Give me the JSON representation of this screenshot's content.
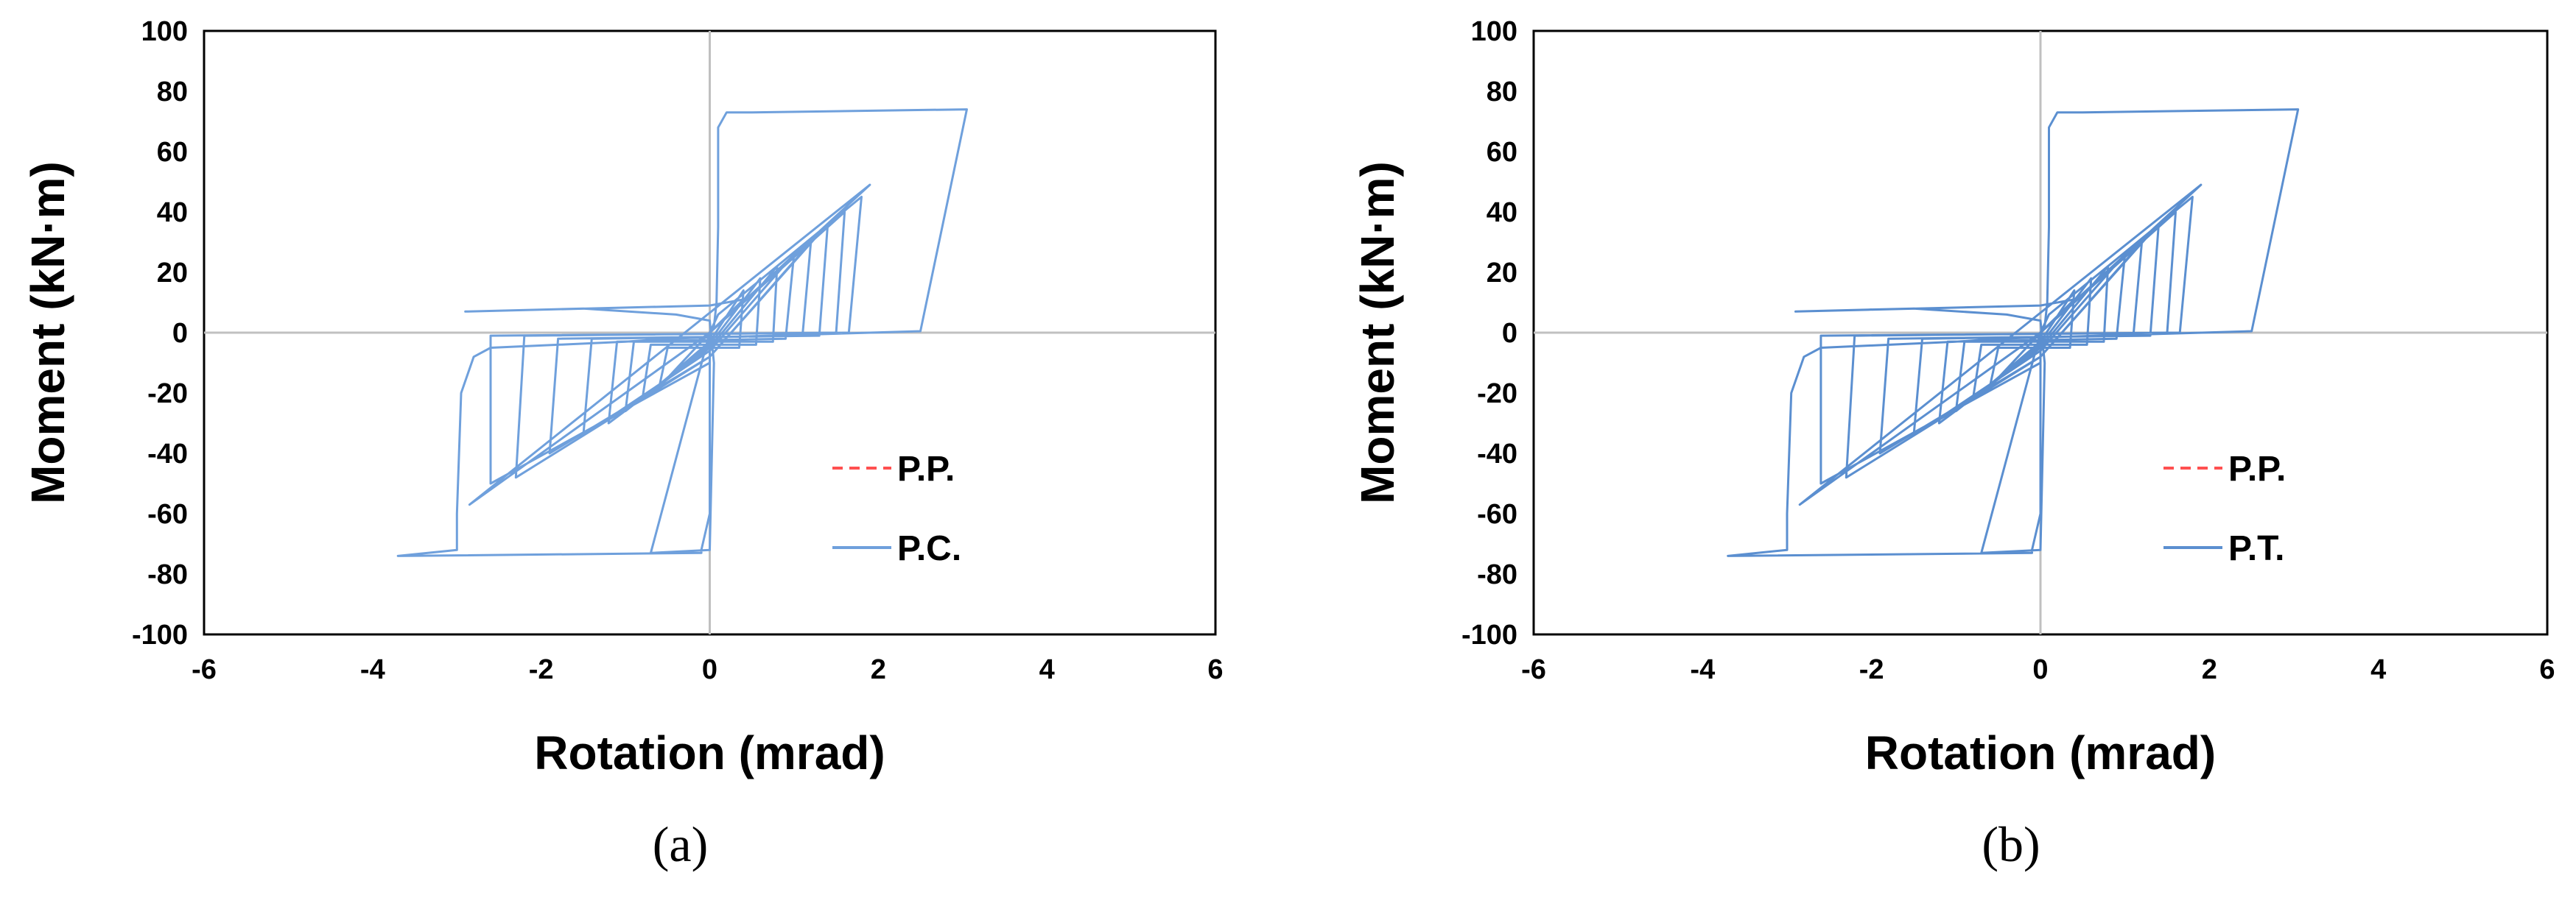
{
  "chart_data": [
    {
      "type": "line",
      "panel_label": "(a)",
      "xlabel": "Rotation (mrad)",
      "ylabel": "Moment (kN·m)",
      "xlim": [
        -6,
        6
      ],
      "ylim": [
        -100,
        100
      ],
      "xticks": [
        "-6",
        "-4",
        "-2",
        "0",
        "2",
        "4",
        "6"
      ],
      "yticks": [
        "100",
        "80",
        "60",
        "40",
        "20",
        "0",
        "-20",
        "-40",
        "-60",
        "-80",
        "-100"
      ],
      "grid": false,
      "legend_position": "bottom-right",
      "series": [
        {
          "name": "P.P.",
          "color": "#ff5050",
          "dash": "dashed",
          "points": []
        },
        {
          "name": "P.C.",
          "color": "#6fa0dc",
          "dash": "solid",
          "points": [
            [
              0,
              0
            ],
            [
              0.05,
              2
            ],
            [
              0.08,
              10
            ],
            [
              0.1,
              35
            ],
            [
              0.1,
              68
            ],
            [
              0.2,
              73
            ],
            [
              0.5,
              73
            ],
            [
              3.05,
              74
            ],
            [
              2.5,
              0.5
            ],
            [
              -0.5,
              -2
            ],
            [
              -1,
              -3
            ],
            [
              -2.6,
              -5
            ],
            [
              -2.8,
              -8
            ],
            [
              -2.95,
              -20
            ],
            [
              -3.0,
              -60
            ],
            [
              -3.0,
              -72
            ],
            [
              -3.7,
              -74
            ],
            [
              -0.1,
              -73
            ],
            [
              -0.1,
              -72
            ],
            [
              0,
              -60
            ],
            [
              0,
              0
            ],
            [
              0,
              0
            ],
            [
              1.9,
              49
            ],
            [
              -2.85,
              -57
            ],
            [
              0,
              0
            ],
            [
              0.1,
              6
            ],
            [
              1.8,
              45
            ],
            [
              1.65,
              0
            ],
            [
              -2.6,
              -1
            ],
            [
              -2.6,
              -50
            ],
            [
              0,
              -10
            ],
            [
              0,
              0
            ],
            [
              1.6,
              40
            ],
            [
              1.5,
              0
            ],
            [
              -2.2,
              -1
            ],
            [
              -2.3,
              -48
            ],
            [
              0,
              -8
            ],
            [
              1.4,
              36
            ],
            [
              1.3,
              -1
            ],
            [
              -1.8,
              -2
            ],
            [
              -1.9,
              -40
            ],
            [
              0,
              -8
            ],
            [
              1.2,
              30
            ],
            [
              1.1,
              -1
            ],
            [
              -1.4,
              -2
            ],
            [
              -1.5,
              -34
            ],
            [
              0,
              -6
            ],
            [
              1.0,
              26
            ],
            [
              0.9,
              -2
            ],
            [
              -1.1,
              -3
            ],
            [
              -1.2,
              -30
            ],
            [
              0,
              -5
            ],
            [
              0.8,
              22
            ],
            [
              0.75,
              -3
            ],
            [
              -0.9,
              -3
            ],
            [
              -1.0,
              -26
            ],
            [
              0,
              -4
            ],
            [
              0.6,
              18
            ],
            [
              0.55,
              -4
            ],
            [
              -0.7,
              -4
            ],
            [
              -0.8,
              -22
            ],
            [
              0,
              -3
            ],
            [
              0.4,
              14
            ],
            [
              0.35,
              -5
            ],
            [
              -0.5,
              -5
            ],
            [
              -0.6,
              -18
            ],
            [
              0,
              0
            ],
            [
              -0.7,
              -73
            ],
            [
              0,
              -72
            ],
            [
              0.05,
              -10
            ],
            [
              0,
              4
            ],
            [
              -0.4,
              6
            ],
            [
              -1.5,
              8
            ],
            [
              -2.9,
              7
            ],
            [
              0,
              9
            ],
            [
              0.4,
              11
            ],
            [
              0,
              0
            ]
          ]
        }
      ]
    },
    {
      "type": "line",
      "panel_label": "(b)",
      "xlabel": "Rotation (mrad)",
      "ylabel": "Moment (kN·m)",
      "xlim": [
        -6,
        6
      ],
      "ylim": [
        -100,
        100
      ],
      "xticks": [
        "-6",
        "-4",
        "-2",
        "0",
        "2",
        "4",
        "6"
      ],
      "yticks": [
        "100",
        "80",
        "60",
        "40",
        "20",
        "0",
        "-20",
        "-40",
        "-60",
        "-80",
        "-100"
      ],
      "grid": false,
      "legend_position": "bottom-right",
      "series": [
        {
          "name": "P.P.",
          "color": "#ff5050",
          "dash": "dashed",
          "points": []
        },
        {
          "name": "P.T.",
          "color": "#5b8fd0",
          "dash": "solid",
          "points": [
            [
              0,
              0
            ],
            [
              0.05,
              2
            ],
            [
              0.08,
              10
            ],
            [
              0.1,
              35
            ],
            [
              0.1,
              68
            ],
            [
              0.2,
              73
            ],
            [
              0.5,
              73
            ],
            [
              3.05,
              74
            ],
            [
              2.5,
              0.5
            ],
            [
              -0.5,
              -2
            ],
            [
              -1,
              -3
            ],
            [
              -2.6,
              -5
            ],
            [
              -2.8,
              -8
            ],
            [
              -2.95,
              -20
            ],
            [
              -3.0,
              -60
            ],
            [
              -3.0,
              -72
            ],
            [
              -3.7,
              -74
            ],
            [
              -0.1,
              -73
            ],
            [
              -0.1,
              -72
            ],
            [
              0,
              -60
            ],
            [
              0,
              0
            ],
            [
              0,
              0
            ],
            [
              1.9,
              49
            ],
            [
              -2.85,
              -57
            ],
            [
              0,
              0
            ],
            [
              0.1,
              6
            ],
            [
              1.8,
              45
            ],
            [
              1.65,
              0
            ],
            [
              -2.6,
              -1
            ],
            [
              -2.6,
              -50
            ],
            [
              0,
              -10
            ],
            [
              0,
              0
            ],
            [
              1.6,
              40
            ],
            [
              1.5,
              0
            ],
            [
              -2.2,
              -1
            ],
            [
              -2.3,
              -48
            ],
            [
              0,
              -8
            ],
            [
              1.4,
              36
            ],
            [
              1.3,
              -1
            ],
            [
              -1.8,
              -2
            ],
            [
              -1.9,
              -40
            ],
            [
              0,
              -8
            ],
            [
              1.2,
              30
            ],
            [
              1.1,
              -1
            ],
            [
              -1.4,
              -2
            ],
            [
              -1.5,
              -34
            ],
            [
              0,
              -6
            ],
            [
              1.0,
              26
            ],
            [
              0.9,
              -2
            ],
            [
              -1.1,
              -3
            ],
            [
              -1.2,
              -30
            ],
            [
              0,
              -5
            ],
            [
              0.8,
              22
            ],
            [
              0.75,
              -3
            ],
            [
              -0.9,
              -3
            ],
            [
              -1.0,
              -26
            ],
            [
              0,
              -4
            ],
            [
              0.6,
              18
            ],
            [
              0.55,
              -4
            ],
            [
              -0.7,
              -4
            ],
            [
              -0.8,
              -22
            ],
            [
              0,
              -3
            ],
            [
              0.4,
              14
            ],
            [
              0.35,
              -5
            ],
            [
              -0.5,
              -5
            ],
            [
              -0.6,
              -18
            ],
            [
              0,
              0
            ],
            [
              -0.7,
              -73
            ],
            [
              0,
              -72
            ],
            [
              0.05,
              -10
            ],
            [
              0,
              4
            ],
            [
              -0.4,
              6
            ],
            [
              -1.5,
              8
            ],
            [
              -2.9,
              7
            ],
            [
              0,
              9
            ],
            [
              0.4,
              11
            ],
            [
              0,
              0
            ]
          ]
        }
      ]
    }
  ]
}
